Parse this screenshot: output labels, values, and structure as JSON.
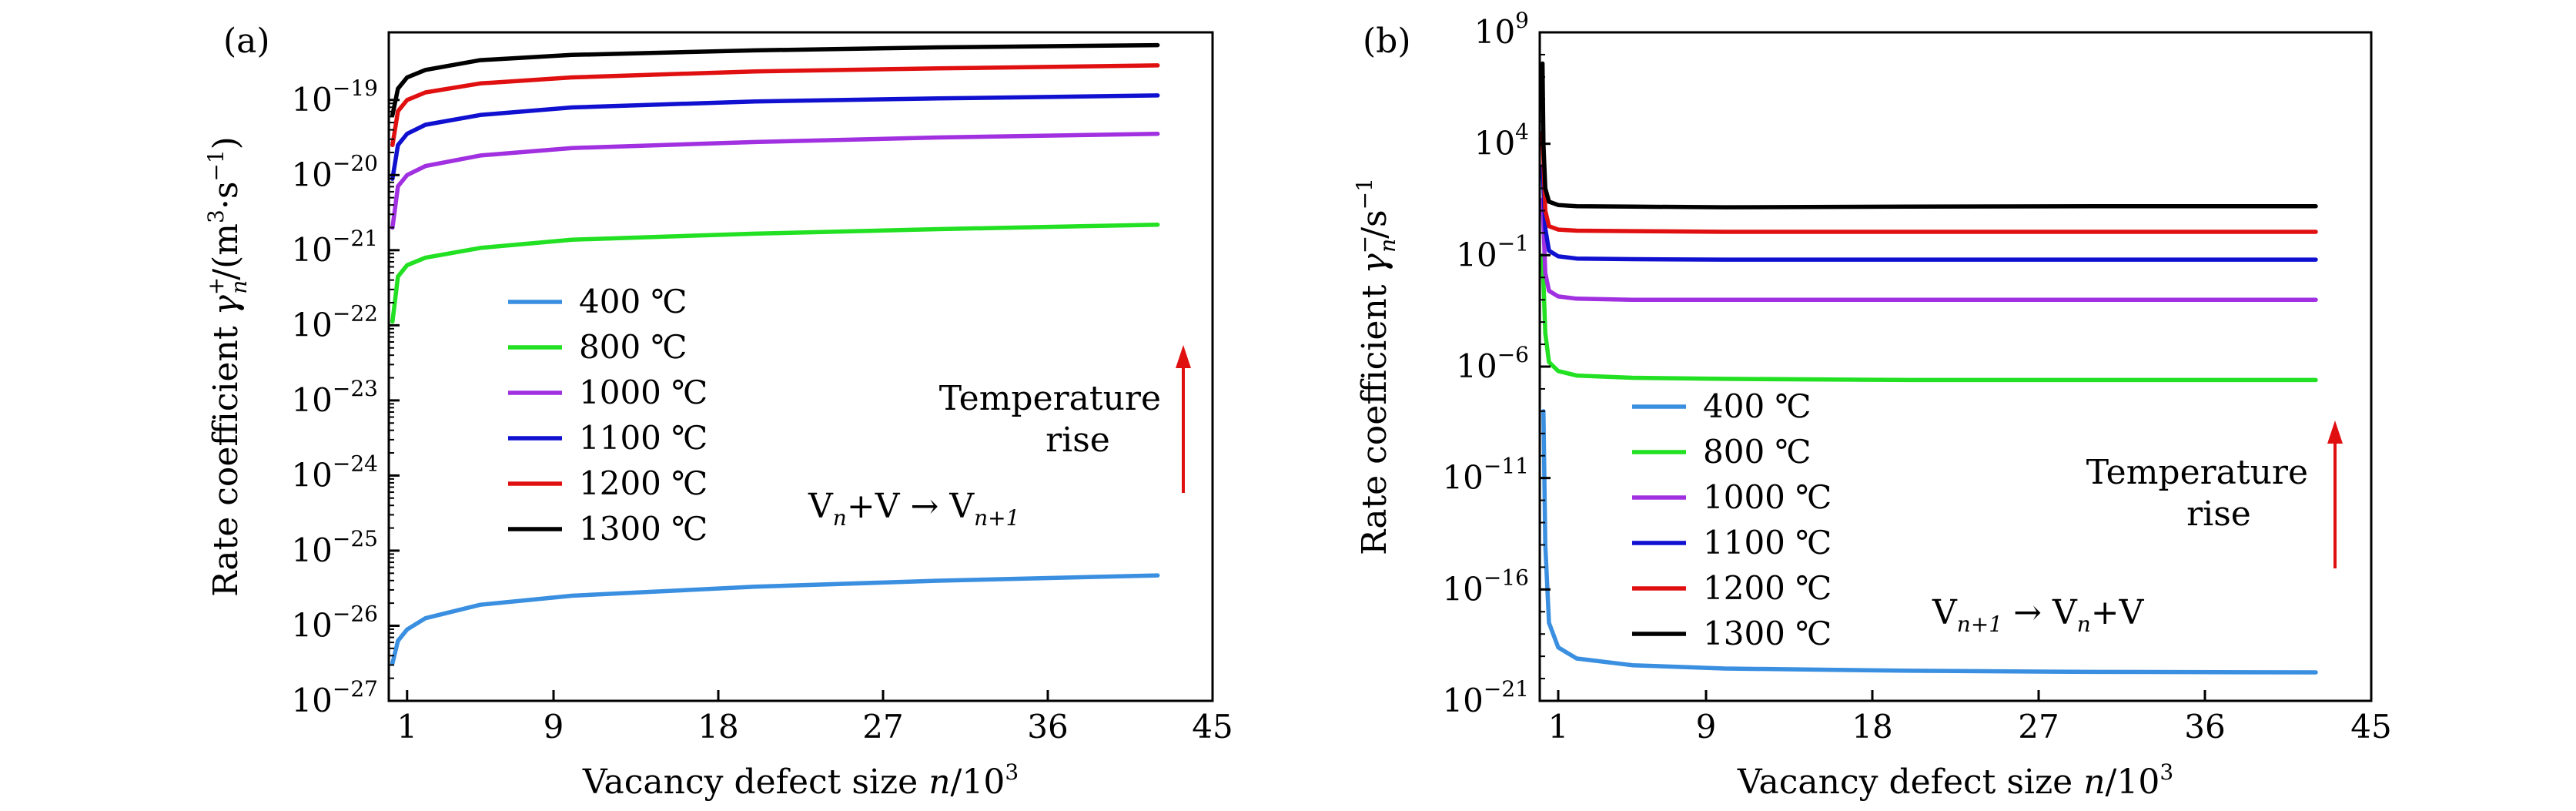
{
  "chart_data": [
    {
      "type": "line",
      "panel_label": "(a)",
      "xlabel": {
        "pre": "Vacancy defect size ",
        "var": "n",
        "slash": "/10",
        "exp": "3"
      },
      "ylabel": {
        "pre": "Rate coefficient ",
        "sym": "γ",
        "sup": "+",
        "sub": "n",
        "post1": "/(m",
        "sup2": "3",
        "post2": "·s",
        "sup3": "−1",
        "post3": ")"
      },
      "x_ticks": [
        1,
        9,
        18,
        27,
        36,
        45
      ],
      "xlim": [
        0,
        45
      ],
      "y_scale": "log",
      "ylim_exp": [
        -27,
        -18.1
      ],
      "y_ticks_exp": [
        -27,
        -26,
        -25,
        -24,
        -23,
        -22,
        -21,
        -20,
        -19
      ],
      "x_units": "thousands",
      "series": [
        {
          "name": "400 ℃",
          "color": "#3a8fe0",
          "x": [
            0.2,
            0.5,
            1,
            2,
            5,
            10,
            20,
            30,
            42
          ],
          "y_exp": [
            -26.5,
            -26.2,
            -26.05,
            -25.9,
            -25.72,
            -25.6,
            -25.48,
            -25.4,
            -25.33
          ]
        },
        {
          "name": "800 ℃",
          "color": "#22e022",
          "x": [
            0.2,
            0.5,
            1,
            2,
            5,
            10,
            20,
            30,
            42
          ],
          "y_exp": [
            -21.95,
            -21.35,
            -21.2,
            -21.1,
            -20.97,
            -20.86,
            -20.78,
            -20.72,
            -20.66
          ]
        },
        {
          "name": "1000 ℃",
          "color": "#a030e0",
          "x": [
            0.2,
            0.5,
            1,
            2,
            5,
            10,
            20,
            30,
            42
          ],
          "y_exp": [
            -20.7,
            -20.15,
            -20.0,
            -19.88,
            -19.74,
            -19.64,
            -19.56,
            -19.5,
            -19.45
          ]
        },
        {
          "name": "1100 ℃",
          "color": "#1010d0",
          "x": [
            0.2,
            0.5,
            1,
            2,
            5,
            10,
            20,
            30,
            42
          ],
          "y_exp": [
            -20.05,
            -19.6,
            -19.45,
            -19.33,
            -19.2,
            -19.1,
            -19.02,
            -18.98,
            -18.94
          ]
        },
        {
          "name": "1200 ℃",
          "color": "#e01010",
          "x": [
            0.2,
            0.5,
            1,
            2,
            5,
            10,
            20,
            30,
            42
          ],
          "y_exp": [
            -19.6,
            -19.15,
            -19.0,
            -18.9,
            -18.78,
            -18.7,
            -18.62,
            -18.58,
            -18.54
          ]
        },
        {
          "name": "1300 ℃",
          "color": "#000000",
          "x": [
            0.2,
            0.5,
            1,
            2,
            5,
            10,
            20,
            30,
            42
          ],
          "y_exp": [
            -19.2,
            -18.85,
            -18.7,
            -18.6,
            -18.47,
            -18.4,
            -18.34,
            -18.3,
            -18.27
          ]
        }
      ],
      "annotation": {
        "line1": "Temperature",
        "line2": "rise"
      },
      "reaction": {
        "a": "V",
        "a_sub": "n",
        "plus": "+V",
        "arrow": " → ",
        "b": "V",
        "b_sub": "n+1"
      },
      "arrow_color": "#e01010"
    },
    {
      "type": "line",
      "panel_label": "(b)",
      "xlabel": {
        "pre": "Vacancy defect size ",
        "var": "n",
        "slash": "/10",
        "exp": "3"
      },
      "ylabel": {
        "pre": "Rate coefficient ",
        "sym": "γ",
        "sup": "−",
        "sub": "n",
        "post1": "/s",
        "sup2": "−1",
        "post2": "",
        "sup3": "",
        "post3": ""
      },
      "x_ticks": [
        1,
        9,
        18,
        27,
        36,
        45
      ],
      "xlim": [
        0,
        45
      ],
      "y_scale": "log",
      "ylim_exp": [
        -21,
        9
      ],
      "y_ticks_exp": [
        -21,
        -16,
        -11,
        -6,
        -1,
        4,
        9
      ],
      "x_units": "thousands",
      "series": [
        {
          "name": "400 ℃",
          "color": "#3a8fe0",
          "x": [
            0.2,
            0.3,
            0.5,
            1,
            2,
            5,
            10,
            20,
            30,
            42
          ],
          "y_exp": [
            -8,
            -14,
            -17.5,
            -18.6,
            -19.1,
            -19.4,
            -19.55,
            -19.65,
            -19.7,
            -19.72
          ]
        },
        {
          "name": "800 ℃",
          "color": "#22e022",
          "x": [
            0.15,
            0.3,
            0.5,
            1,
            2,
            5,
            10,
            20,
            30,
            42
          ],
          "y_exp": [
            -1,
            -4.5,
            -5.8,
            -6.2,
            -6.4,
            -6.5,
            -6.55,
            -6.6,
            -6.6,
            -6.6
          ]
        },
        {
          "name": "1000 ℃",
          "color": "#a030e0",
          "x": [
            0.15,
            0.3,
            0.5,
            1,
            2,
            5,
            10,
            20,
            30,
            42
          ],
          "y_exp": [
            1.5,
            -1.8,
            -2.6,
            -2.85,
            -2.95,
            -3.0,
            -3.0,
            -3.0,
            -3.0,
            -3.0
          ]
        },
        {
          "name": "1100 ℃",
          "color": "#1010d0",
          "x": [
            0.15,
            0.3,
            0.5,
            1,
            2,
            5,
            10,
            20,
            30,
            42
          ],
          "y_exp": [
            3,
            0.2,
            -0.8,
            -1.05,
            -1.15,
            -1.18,
            -1.2,
            -1.2,
            -1.2,
            -1.2
          ]
        },
        {
          "name": "1200 ℃",
          "color": "#e01010",
          "x": [
            0.15,
            0.3,
            0.5,
            1,
            2,
            5,
            10,
            20,
            30,
            42
          ],
          "y_exp": [
            4.5,
            1.0,
            0.3,
            0.15,
            0.1,
            0.08,
            0.05,
            0.05,
            0.05,
            0.05
          ]
        },
        {
          "name": "1300 ℃",
          "color": "#000000",
          "x": [
            0.15,
            0.2,
            0.3,
            0.5,
            1,
            2,
            5,
            10,
            20,
            30,
            42
          ],
          "y_exp": [
            7.6,
            4.0,
            2.0,
            1.4,
            1.25,
            1.2,
            1.18,
            1.15,
            1.18,
            1.2,
            1.2
          ]
        }
      ],
      "annotation": {
        "line1": "Temperature",
        "line2": "rise"
      },
      "reaction": {
        "a": "V",
        "a_sub": "n+1",
        "plus": "",
        "arrow": " → ",
        "b": "V",
        "b_sub": "n",
        "b_post": "+V"
      },
      "arrow_color": "#e01010"
    }
  ]
}
